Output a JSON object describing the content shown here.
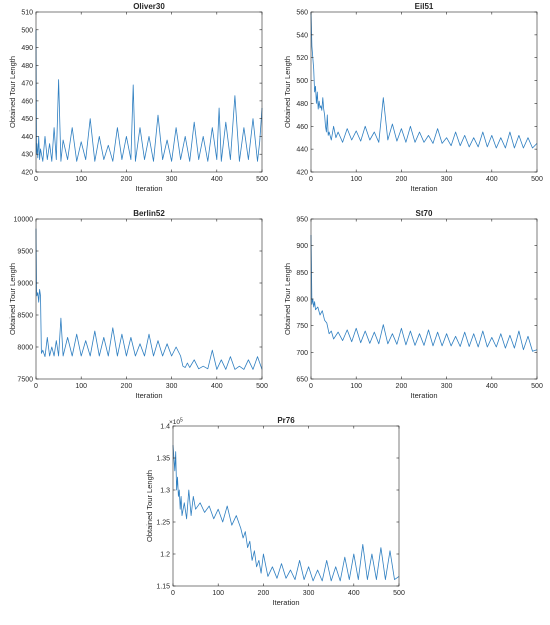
{
  "colors": {
    "line": "#2f7fc1",
    "axis": "#262626",
    "background": "#ffffff"
  },
  "chart_data": [
    {
      "type": "line",
      "title": "Oliver30",
      "xlabel": "Iteration",
      "ylabel": "Obtained Tour Length",
      "xlim": [
        0,
        500
      ],
      "ylim": [
        420,
        510
      ],
      "xticks": [
        0,
        100,
        200,
        300,
        400,
        500
      ],
      "yticks": [
        420,
        430,
        440,
        450,
        460,
        470,
        480,
        490,
        500,
        510
      ],
      "exponent_label": "",
      "grid": false,
      "series": [
        {
          "x": [
            0,
            1,
            2,
            4,
            6,
            8,
            10,
            15,
            20,
            25,
            30,
            35,
            40,
            45,
            50,
            55,
            60,
            70,
            80,
            90,
            100,
            110,
            120,
            130,
            140,
            150,
            160,
            170,
            180,
            190,
            200,
            210,
            215,
            220,
            230,
            240,
            250,
            260,
            270,
            280,
            290,
            300,
            310,
            320,
            330,
            340,
            350,
            360,
            370,
            380,
            390,
            400,
            405,
            410,
            420,
            430,
            440,
            450,
            460,
            470,
            480,
            490,
            495,
            500
          ],
          "y": [
            500,
            430,
            436,
            428,
            440,
            427,
            433,
            426,
            440,
            427,
            436,
            426,
            445,
            427,
            472,
            426,
            438,
            427,
            445,
            426,
            437,
            427,
            450,
            426,
            440,
            427,
            435,
            426,
            445,
            427,
            440,
            427,
            469,
            426,
            445,
            427,
            440,
            426,
            452,
            427,
            438,
            426,
            445,
            427,
            440,
            426,
            448,
            427,
            440,
            426,
            445,
            427,
            456,
            426,
            448,
            427,
            463,
            426,
            445,
            427,
            450,
            426,
            437,
            456
          ]
        }
      ]
    },
    {
      "type": "line",
      "title": "Eil51",
      "xlabel": "Iteration",
      "ylabel": "Obtained Tour Length",
      "xlim": [
        0,
        500
      ],
      "ylim": [
        420,
        560
      ],
      "xticks": [
        0,
        100,
        200,
        300,
        400,
        500
      ],
      "yticks": [
        420,
        440,
        460,
        480,
        500,
        520,
        540,
        560
      ],
      "exponent_label": "",
      "grid": false,
      "series": [
        {
          "x": [
            0,
            2,
            4,
            6,
            8,
            10,
            12,
            14,
            16,
            18,
            20,
            22,
            24,
            26,
            28,
            30,
            32,
            34,
            36,
            38,
            40,
            45,
            50,
            55,
            60,
            70,
            80,
            90,
            100,
            110,
            120,
            130,
            140,
            150,
            160,
            170,
            180,
            190,
            200,
            210,
            220,
            230,
            240,
            250,
            260,
            270,
            280,
            290,
            300,
            310,
            320,
            330,
            340,
            350,
            360,
            370,
            380,
            390,
            400,
            410,
            420,
            430,
            440,
            450,
            460,
            470,
            480,
            490,
            500
          ],
          "y": [
            560,
            530,
            520,
            510,
            490,
            495,
            480,
            490,
            475,
            482,
            476,
            478,
            474,
            485,
            475,
            470,
            460,
            455,
            470,
            452,
            455,
            448,
            460,
            450,
            455,
            446,
            458,
            448,
            456,
            447,
            460,
            448,
            455,
            446,
            485,
            448,
            462,
            447,
            458,
            446,
            460,
            446,
            455,
            446,
            452,
            445,
            458,
            445,
            450,
            443,
            455,
            443,
            452,
            442,
            450,
            442,
            455,
            442,
            452,
            441,
            450,
            441,
            455,
            441,
            452,
            441,
            450,
            441,
            445
          ]
        }
      ]
    },
    {
      "type": "line",
      "title": "Berlin52",
      "xlabel": "Iteration",
      "ylabel": "Obtained Tour Length",
      "xlim": [
        0,
        500
      ],
      "ylim": [
        7500,
        10000
      ],
      "xticks": [
        0,
        100,
        200,
        300,
        400,
        500
      ],
      "yticks": [
        7500,
        8000,
        8500,
        9000,
        9500,
        10000
      ],
      "exponent_label": "",
      "grid": false,
      "series": [
        {
          "x": [
            0,
            1,
            2,
            4,
            6,
            8,
            10,
            12,
            15,
            20,
            25,
            30,
            35,
            40,
            45,
            50,
            55,
            60,
            70,
            80,
            90,
            100,
            110,
            120,
            130,
            140,
            150,
            160,
            170,
            180,
            190,
            200,
            210,
            220,
            230,
            240,
            250,
            260,
            270,
            280,
            290,
            300,
            310,
            320,
            325,
            330,
            335,
            340,
            350,
            360,
            370,
            380,
            390,
            400,
            410,
            420,
            430,
            440,
            450,
            460,
            470,
            480,
            490,
            500
          ],
          "y": [
            9850,
            8900,
            8800,
            8850,
            8700,
            8900,
            8800,
            7900,
            7950,
            7850,
            8150,
            7860,
            8000,
            7860,
            8100,
            7860,
            8450,
            7860,
            8150,
            7860,
            8200,
            7860,
            8100,
            7860,
            8250,
            7860,
            8150,
            7860,
            8300,
            7860,
            8200,
            7860,
            8150,
            7860,
            8050,
            7860,
            8200,
            7860,
            8100,
            7860,
            8050,
            7860,
            8000,
            7860,
            7700,
            7680,
            7750,
            7680,
            7800,
            7660,
            7700,
            7660,
            7950,
            7650,
            7800,
            7650,
            7850,
            7650,
            7700,
            7650,
            7800,
            7650,
            7850,
            7650
          ]
        }
      ]
    },
    {
      "type": "line",
      "title": "St70",
      "xlabel": "Iteration",
      "ylabel": "Obtained Tour Length",
      "xlim": [
        0,
        500
      ],
      "ylim": [
        650,
        950
      ],
      "xticks": [
        0,
        100,
        200,
        300,
        400,
        500
      ],
      "yticks": [
        650,
        700,
        750,
        800,
        850,
        900,
        950
      ],
      "exponent_label": "",
      "grid": false,
      "series": [
        {
          "x": [
            0,
            1,
            2,
            4,
            6,
            8,
            10,
            15,
            20,
            25,
            30,
            35,
            40,
            45,
            50,
            60,
            70,
            80,
            90,
            100,
            110,
            120,
            130,
            140,
            150,
            160,
            170,
            180,
            190,
            200,
            210,
            220,
            230,
            240,
            250,
            260,
            270,
            280,
            290,
            300,
            310,
            320,
            330,
            340,
            350,
            360,
            370,
            380,
            390,
            400,
            410,
            420,
            430,
            440,
            450,
            460,
            470,
            480,
            490,
            500
          ],
          "y": [
            920,
            850,
            790,
            800,
            785,
            795,
            780,
            785,
            770,
            778,
            760,
            755,
            735,
            740,
            725,
            738,
            722,
            742,
            720,
            745,
            718,
            740,
            717,
            738,
            716,
            752,
            716,
            735,
            715,
            745,
            714,
            740,
            713,
            735,
            713,
            742,
            712,
            738,
            712,
            735,
            712,
            730,
            711,
            738,
            711,
            735,
            710,
            740,
            710,
            728,
            710,
            735,
            708,
            732,
            708,
            740,
            705,
            730,
            702,
            705
          ]
        }
      ]
    },
    {
      "type": "line",
      "title": "Pr76",
      "xlabel": "Iteration",
      "ylabel": "Obtained Tour Length",
      "xlim": [
        0,
        500
      ],
      "ylim": [
        1.15,
        1.4
      ],
      "xticks": [
        0,
        100,
        200,
        300,
        400,
        500
      ],
      "yticks": [
        1.15,
        1.2,
        1.25,
        1.3,
        1.35,
        1.4
      ],
      "exponent_label": "×10",
      "exponent_power": "5",
      "grid": false,
      "series": [
        {
          "x": [
            0,
            2,
            4,
            6,
            8,
            10,
            12,
            14,
            16,
            18,
            20,
            25,
            30,
            35,
            40,
            45,
            50,
            60,
            70,
            80,
            90,
            100,
            110,
            120,
            130,
            140,
            150,
            155,
            160,
            165,
            170,
            175,
            180,
            185,
            190,
            195,
            200,
            210,
            220,
            230,
            240,
            250,
            260,
            270,
            280,
            290,
            300,
            310,
            320,
            330,
            340,
            350,
            360,
            370,
            380,
            390,
            400,
            410,
            420,
            430,
            440,
            450,
            460,
            470,
            480,
            490,
            500
          ],
          "y": [
            1.37,
            1.35,
            1.33,
            1.36,
            1.3,
            1.32,
            1.29,
            1.3,
            1.27,
            1.29,
            1.26,
            1.28,
            1.255,
            1.3,
            1.26,
            1.29,
            1.27,
            1.28,
            1.265,
            1.275,
            1.255,
            1.27,
            1.25,
            1.275,
            1.245,
            1.26,
            1.24,
            1.225,
            1.235,
            1.21,
            1.22,
            1.19,
            1.205,
            1.18,
            1.19,
            1.17,
            1.2,
            1.165,
            1.18,
            1.162,
            1.185,
            1.162,
            1.175,
            1.16,
            1.19,
            1.16,
            1.18,
            1.158,
            1.175,
            1.158,
            1.19,
            1.158,
            1.18,
            1.158,
            1.195,
            1.16,
            1.2,
            1.16,
            1.215,
            1.16,
            1.2,
            1.16,
            1.21,
            1.16,
            1.205,
            1.16,
            1.165
          ]
        }
      ]
    }
  ]
}
